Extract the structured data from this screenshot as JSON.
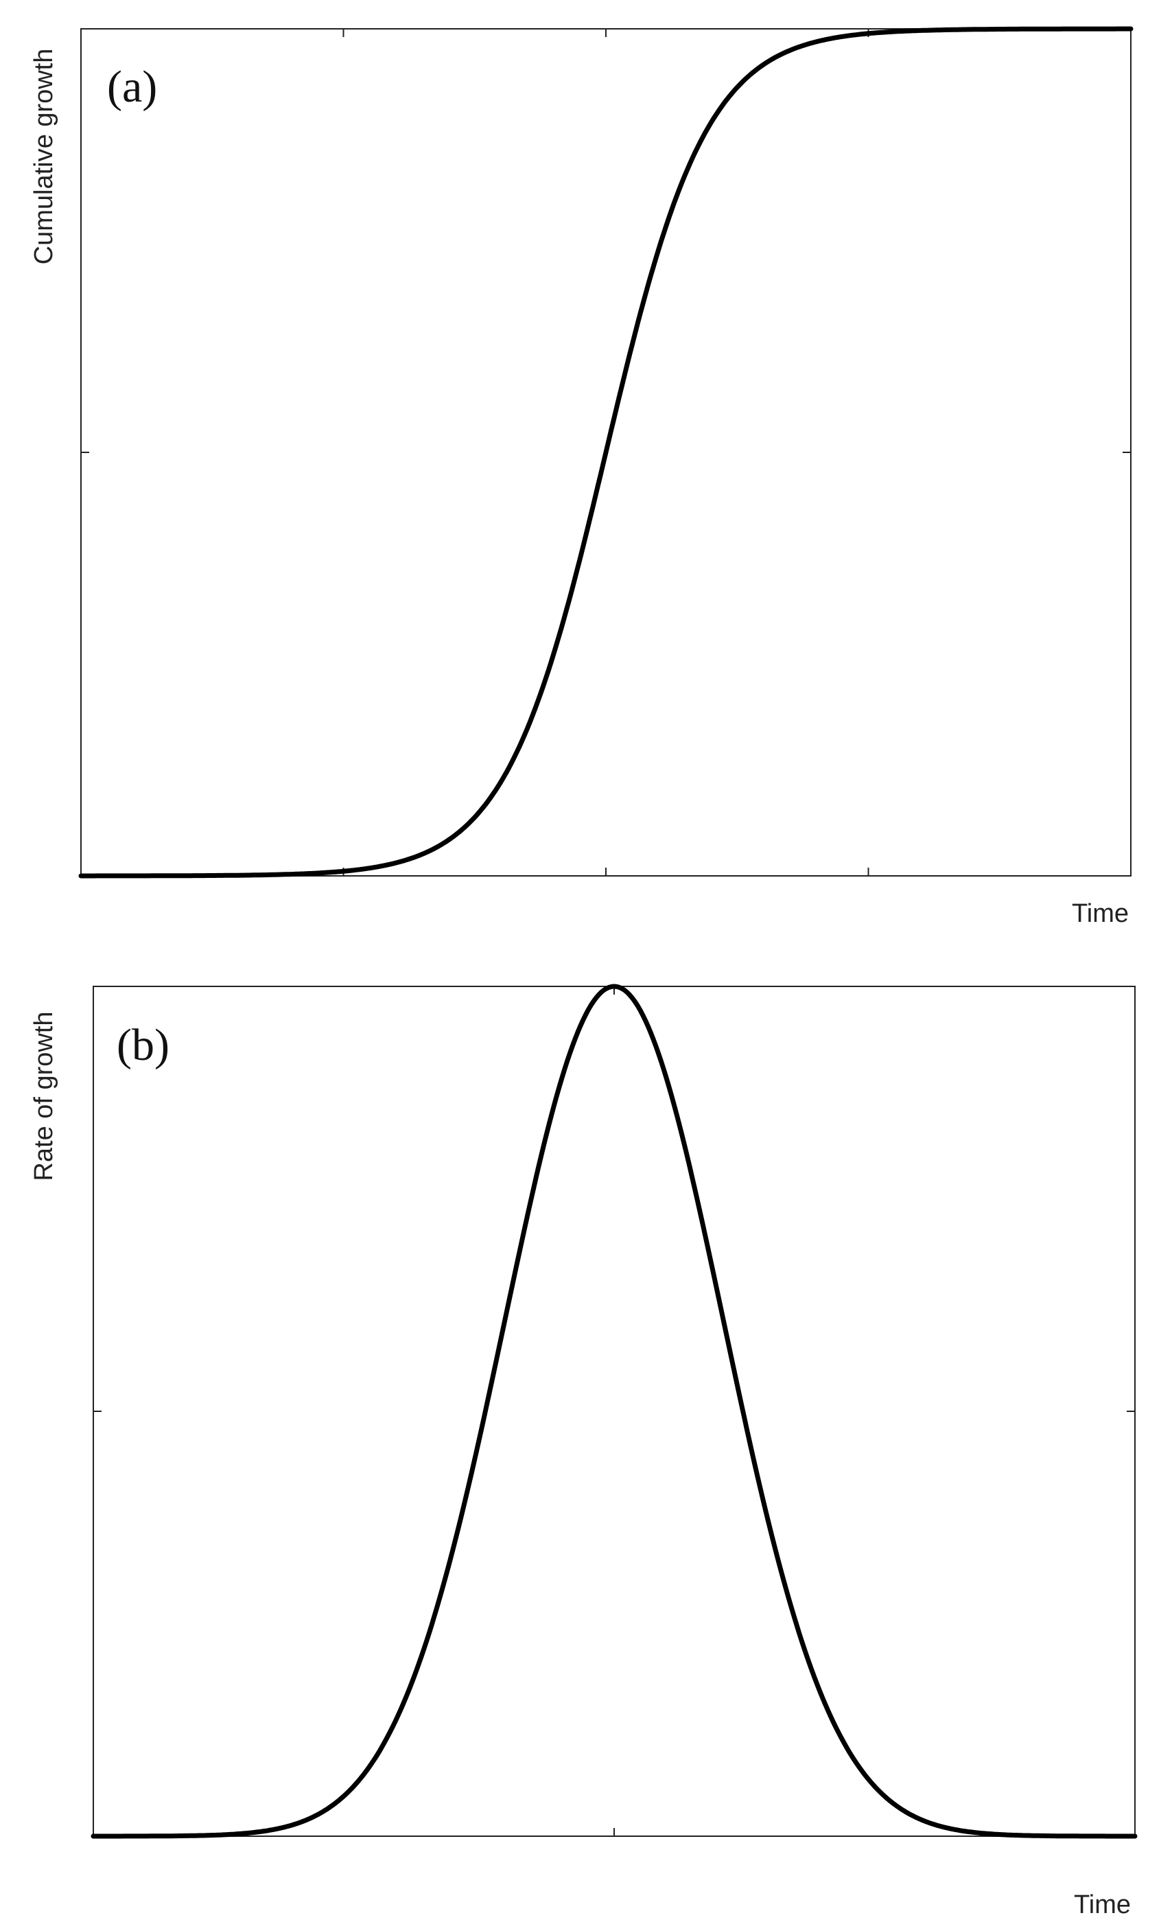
{
  "chart_data": [
    {
      "type": "line",
      "panel_label": "(a)",
      "xlabel": "Time",
      "ylabel": "Cumulative growth",
      "curve_shape": "logistic",
      "xlim": [
        0,
        4
      ],
      "ylim": [
        0,
        1
      ],
      "x_ticks": [
        1,
        2,
        3
      ],
      "y_ticks": [
        0.5
      ],
      "grid": false,
      "series": [
        {
          "x": [
            0,
            0.25,
            0.5,
            0.75,
            1.0,
            1.25,
            1.5,
            1.75,
            2.0,
            2.25,
            2.5,
            2.75,
            3.0,
            3.25,
            3.5,
            3.75,
            4.0
          ],
          "y": [
            0.0,
            0.0,
            0.0,
            0.001,
            0.004,
            0.014,
            0.05,
            0.16,
            0.45,
            0.78,
            0.93,
            0.98,
            0.995,
            0.999,
            1.0,
            1.0,
            1.0
          ]
        }
      ]
    },
    {
      "type": "line",
      "panel_label": "(b)",
      "xlabel": "Time",
      "ylabel": "Rate of growth",
      "curve_shape": "gaussian",
      "xlim": [
        0,
        4
      ],
      "ylim": [
        0,
        1
      ],
      "x_ticks": [
        2
      ],
      "y_ticks": [
        0.5
      ],
      "grid": false,
      "series": [
        {
          "x": [
            0,
            0.25,
            0.5,
            0.75,
            1.0,
            1.25,
            1.5,
            1.75,
            2.0,
            2.25,
            2.5,
            2.75,
            3.0,
            3.25,
            3.5,
            3.75,
            4.0
          ],
          "y": [
            0.0,
            0.0,
            0.001,
            0.01,
            0.06,
            0.21,
            0.5,
            0.83,
            1.0,
            0.83,
            0.5,
            0.21,
            0.06,
            0.01,
            0.001,
            0.0,
            0.0
          ]
        }
      ]
    }
  ]
}
